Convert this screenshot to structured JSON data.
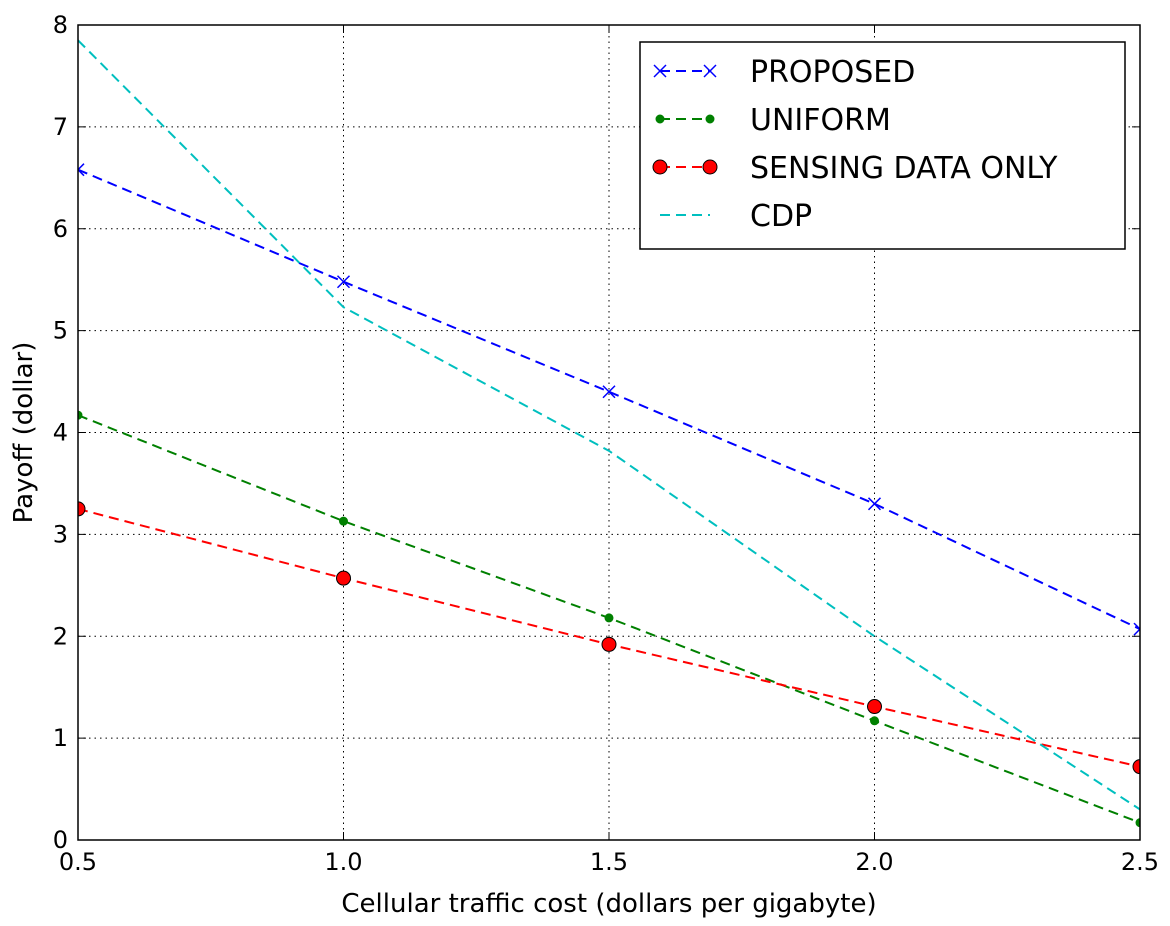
{
  "chart_data": {
    "type": "line",
    "xlabel": "Cellular traffic cost (dollars per gigabyte)",
    "ylabel": "Payoff (dollar)",
    "xlim": [
      0.5,
      2.5
    ],
    "ylim": [
      0,
      8
    ],
    "xticks": [
      "0.5",
      "1.0",
      "1.5",
      "2.0",
      "2.5"
    ],
    "yticks": [
      "0",
      "1",
      "2",
      "3",
      "4",
      "5",
      "6",
      "7",
      "8"
    ],
    "grid": true,
    "legend_position": "top-right",
    "series": [
      {
        "name": "PROPOSED",
        "color": "#0000ff",
        "marker": "x",
        "x": [
          0.5,
          1.0,
          1.5,
          2.0,
          2.5
        ],
        "y": [
          6.58,
          5.48,
          4.4,
          3.3,
          2.07
        ]
      },
      {
        "name": "UNIFORM",
        "color": "#008000",
        "marker": "dot",
        "x": [
          0.5,
          1.0,
          1.5,
          2.0,
          2.5
        ],
        "y": [
          4.17,
          3.13,
          2.18,
          1.17,
          0.17
        ]
      },
      {
        "name": "SENSING DATA ONLY",
        "color": "#ff0000",
        "marker": "circle",
        "x": [
          0.5,
          1.0,
          1.5,
          2.0,
          2.5
        ],
        "y": [
          3.25,
          2.57,
          1.92,
          1.31,
          0.72
        ]
      },
      {
        "name": "CDP",
        "color": "#00bfbf",
        "marker": "none",
        "x": [
          0.5,
          1.0,
          1.5,
          2.0,
          2.5
        ],
        "y": [
          7.85,
          5.23,
          3.82,
          2.0,
          0.3
        ]
      }
    ]
  }
}
